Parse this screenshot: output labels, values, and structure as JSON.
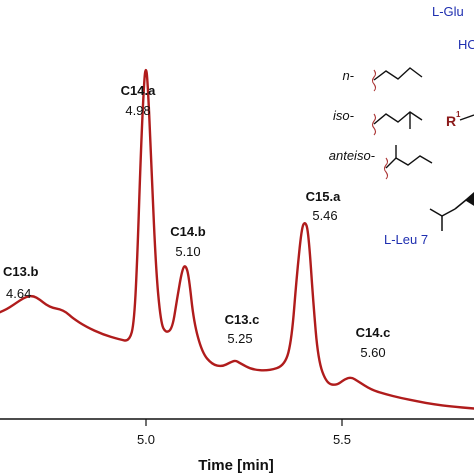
{
  "chart_data": {
    "type": "line",
    "xlabel": "Time [min]",
    "xlim": [
      4.54,
      5.97
    ],
    "ylim": [
      0,
      1.0
    ],
    "x_ticks": [
      "5.0",
      "5.5"
    ],
    "line_color": "#b01c1c",
    "trace": [
      [
        4.54,
        0.255
      ],
      [
        4.56,
        0.262
      ],
      [
        4.58,
        0.272
      ],
      [
        4.6,
        0.283
      ],
      [
        4.62,
        0.292
      ],
      [
        4.64,
        0.294
      ],
      [
        4.66,
        0.285
      ],
      [
        4.68,
        0.272
      ],
      [
        4.7,
        0.265
      ],
      [
        4.72,
        0.262
      ],
      [
        4.74,
        0.255
      ],
      [
        4.76,
        0.24
      ],
      [
        4.8,
        0.22
      ],
      [
        4.85,
        0.202
      ],
      [
        4.9,
        0.19
      ],
      [
        4.93,
        0.185
      ],
      [
        4.945,
        0.23
      ],
      [
        4.955,
        0.4
      ],
      [
        4.965,
        0.64
      ],
      [
        4.975,
        0.81
      ],
      [
        4.98,
        0.84
      ],
      [
        4.985,
        0.812
      ],
      [
        4.995,
        0.64
      ],
      [
        5.01,
        0.36
      ],
      [
        5.025,
        0.23
      ],
      [
        5.04,
        0.205
      ],
      [
        5.06,
        0.215
      ],
      [
        5.075,
        0.29
      ],
      [
        5.09,
        0.358
      ],
      [
        5.1,
        0.368
      ],
      [
        5.11,
        0.34
      ],
      [
        5.125,
        0.23
      ],
      [
        5.15,
        0.158
      ],
      [
        5.18,
        0.13
      ],
      [
        5.21,
        0.125
      ],
      [
        5.235,
        0.135
      ],
      [
        5.25,
        0.14
      ],
      [
        5.265,
        0.133
      ],
      [
        5.3,
        0.118
      ],
      [
        5.35,
        0.115
      ],
      [
        5.4,
        0.128
      ],
      [
        5.42,
        0.19
      ],
      [
        5.435,
        0.34
      ],
      [
        5.45,
        0.455
      ],
      [
        5.46,
        0.472
      ],
      [
        5.47,
        0.45
      ],
      [
        5.485,
        0.28
      ],
      [
        5.5,
        0.14
      ],
      [
        5.525,
        0.085
      ],
      [
        5.555,
        0.08
      ],
      [
        5.58,
        0.095
      ],
      [
        5.6,
        0.1
      ],
      [
        5.62,
        0.09
      ],
      [
        5.66,
        0.07
      ],
      [
        5.7,
        0.06
      ],
      [
        5.75,
        0.05
      ],
      [
        5.8,
        0.042
      ],
      [
        5.85,
        0.035
      ],
      [
        5.9,
        0.03
      ],
      [
        5.97,
        0.025
      ]
    ],
    "peaks": [
      {
        "name": "C13.b",
        "rt": "4.64"
      },
      {
        "name": "C14.a",
        "rt": "4.98"
      },
      {
        "name": "C14.b",
        "rt": "5.10"
      },
      {
        "name": "C13.c",
        "rt": "5.25"
      },
      {
        "name": "C15.a",
        "rt": "5.46"
      },
      {
        "name": "C14.c",
        "rt": "5.60"
      }
    ]
  },
  "legend": {
    "glu_label": "L-Glu",
    "ho_label": "HO",
    "leu_label": "L-Leu 7",
    "r_label": "R",
    "r_superscript": "1",
    "structures": [
      {
        "label": "n-"
      },
      {
        "label": "iso-"
      },
      {
        "label": "anteiso-"
      }
    ]
  }
}
